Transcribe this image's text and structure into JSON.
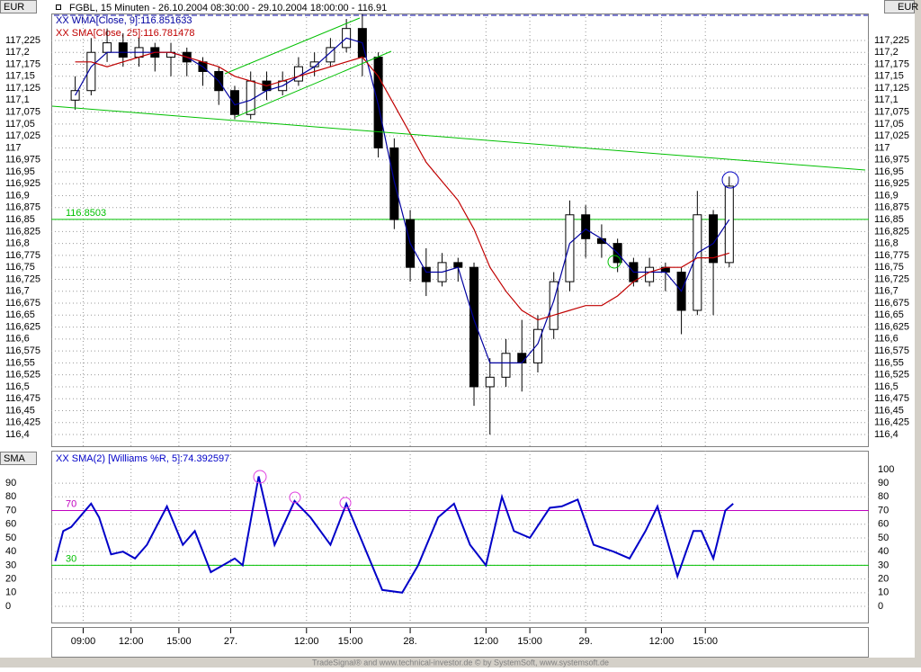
{
  "chart_data": [
    {
      "type": "candlestick",
      "title": "FGBL, 15 Minuten - 26.10.2004 08:30:00 - 29.10.2004 18:00:00 - 116.91",
      "unit": "EUR",
      "x": [
        0,
        4,
        8,
        12,
        16,
        20,
        24,
        28,
        32,
        36,
        40,
        44,
        48,
        52,
        56,
        60,
        64,
        68,
        72,
        76,
        80,
        84,
        88,
        92,
        96,
        100,
        104,
        108,
        112,
        116,
        120,
        124,
        128,
        132,
        136,
        140,
        144,
        148,
        152,
        156,
        160,
        164
      ],
      "open": [
        117.1,
        117.12,
        117.2,
        117.22,
        117.19,
        117.21,
        117.19,
        117.2,
        117.18,
        117.16,
        117.12,
        117.07,
        117.14,
        117.12,
        117.14,
        117.17,
        117.18,
        117.21,
        117.25,
        117.19,
        117.0,
        116.85,
        116.75,
        116.72,
        116.76,
        116.75,
        116.5,
        116.52,
        116.57,
        116.55,
        116.62,
        116.72,
        116.86,
        116.81,
        116.8,
        116.76,
        116.72,
        116.75,
        116.74,
        116.66,
        116.86,
        116.76
      ],
      "high": [
        117.15,
        117.23,
        117.25,
        117.24,
        117.23,
        117.22,
        117.22,
        117.21,
        117.19,
        117.17,
        117.13,
        117.16,
        117.16,
        117.16,
        117.19,
        117.2,
        117.23,
        117.27,
        117.28,
        117.2,
        117.02,
        116.87,
        116.79,
        116.78,
        116.77,
        116.76,
        116.56,
        116.6,
        116.64,
        116.65,
        116.74,
        116.89,
        116.88,
        116.84,
        116.81,
        116.77,
        116.77,
        116.76,
        116.75,
        116.91,
        116.87,
        116.94
      ],
      "low": [
        117.08,
        117.11,
        117.18,
        117.17,
        117.17,
        117.16,
        117.15,
        117.15,
        117.13,
        117.09,
        117.06,
        117.06,
        117.1,
        117.11,
        117.13,
        117.15,
        117.17,
        117.2,
        117.15,
        116.98,
        116.83,
        116.72,
        116.69,
        116.71,
        116.72,
        116.46,
        116.4,
        116.5,
        116.49,
        116.53,
        116.6,
        116.7,
        116.77,
        116.77,
        116.74,
        116.71,
        116.71,
        116.7,
        116.61,
        116.65,
        116.65,
        116.75
      ],
      "close": [
        117.12,
        117.2,
        117.22,
        117.19,
        117.21,
        117.19,
        117.2,
        117.18,
        117.16,
        117.12,
        117.07,
        117.14,
        117.12,
        117.14,
        117.17,
        117.18,
        117.21,
        117.25,
        117.19,
        117.0,
        116.85,
        116.75,
        116.72,
        116.76,
        116.75,
        116.5,
        116.52,
        116.57,
        116.55,
        116.62,
        116.72,
        116.86,
        116.81,
        116.8,
        116.76,
        116.72,
        116.75,
        116.74,
        116.66,
        116.86,
        116.76,
        116.92
      ],
      "series": [
        {
          "name": "XX WMA[Close, 9]:116.851633",
          "color": "#0000a0",
          "values": [
            117.11,
            117.17,
            117.2,
            117.2,
            117.2,
            117.2,
            117.2,
            117.19,
            117.17,
            117.14,
            117.09,
            117.1,
            117.12,
            117.13,
            117.15,
            117.17,
            117.2,
            117.23,
            117.22,
            117.09,
            116.93,
            116.8,
            116.74,
            116.74,
            116.75,
            116.64,
            116.55,
            116.55,
            116.55,
            116.59,
            116.68,
            116.8,
            116.83,
            116.81,
            116.78,
            116.74,
            116.74,
            116.74,
            116.7,
            116.78,
            116.8,
            116.85
          ]
        },
        {
          "name": "XX SMA[Close, 25]:116.781478",
          "color": "#c00000",
          "values": [
            117.18,
            117.18,
            117.17,
            117.18,
            117.19,
            117.2,
            117.2,
            117.19,
            117.18,
            117.17,
            117.15,
            117.14,
            117.13,
            117.14,
            117.15,
            117.16,
            117.17,
            117.18,
            117.19,
            117.15,
            117.09,
            117.03,
            116.97,
            116.93,
            116.89,
            116.83,
            116.75,
            116.7,
            116.66,
            116.64,
            116.65,
            116.66,
            116.67,
            116.67,
            116.69,
            116.72,
            116.74,
            116.75,
            116.75,
            116.77,
            116.77,
            116.78
          ]
        }
      ],
      "hlines": [
        {
          "value": 116.8503,
          "color": "#00c000"
        }
      ],
      "ylim": [
        116.3756,
        117.2814
      ],
      "yticks": [
        {
          "value": 117.225,
          "label": "117,225"
        },
        {
          "value": 117.2,
          "label": "117,2"
        },
        {
          "value": 117.175,
          "label": "117,175"
        },
        {
          "value": 117.15,
          "label": "117,15"
        },
        {
          "value": 117.125,
          "label": "117,125"
        },
        {
          "value": 117.1,
          "label": "117,1"
        },
        {
          "value": 117.075,
          "label": "117,075"
        },
        {
          "value": 117.05,
          "label": "117,05"
        },
        {
          "value": 117.025,
          "label": "117,025"
        },
        117,
        {
          "value": 116.975,
          "label": "116,975"
        },
        {
          "value": 116.95,
          "label": "116,95"
        },
        {
          "value": 116.925,
          "label": "116,925"
        },
        {
          "value": 116.9,
          "label": "116,9"
        },
        {
          "value": 116.875,
          "label": "116,875"
        },
        {
          "value": 116.85,
          "label": "116,85"
        },
        {
          "value": 116.825,
          "label": "116,825"
        },
        {
          "value": 116.8,
          "label": "116,8"
        },
        {
          "value": 116.775,
          "label": "116,775"
        },
        {
          "value": 116.75,
          "label": "116,75"
        },
        {
          "value": 116.725,
          "label": "116,725"
        },
        {
          "value": 116.7,
          "label": "116,7"
        },
        {
          "value": 116.675,
          "label": "116,675"
        },
        {
          "value": 116.65,
          "label": "116,65"
        },
        {
          "value": 116.625,
          "label": "116,625"
        },
        {
          "value": 116.6,
          "label": "116,6"
        },
        {
          "value": 116.575,
          "label": "116,575"
        },
        {
          "value": 116.55,
          "label": "116,55"
        },
        {
          "value": 116.525,
          "label": "116,525"
        },
        {
          "value": 116.5,
          "label": "116,5"
        },
        {
          "value": 116.475,
          "label": "116,475"
        },
        {
          "value": 116.45,
          "label": "116,45"
        },
        {
          "value": 116.425,
          "label": "116,425"
        },
        {
          "value": 116.4,
          "label": "116,4"
        }
      ],
      "grid": true
    },
    {
      "type": "line",
      "panel_label": "SMA",
      "x": [
        -5,
        -3,
        -1,
        4,
        6,
        9,
        12,
        15,
        18,
        23,
        27,
        30,
        34,
        40,
        42,
        46,
        50,
        55,
        59,
        64,
        68,
        73,
        77,
        82,
        86,
        91,
        95,
        99,
        103,
        107,
        110,
        114,
        119,
        122,
        126,
        130,
        135,
        139,
        143,
        146,
        151,
        155,
        157,
        160,
        163,
        165
      ],
      "series": [
        {
          "name": "XX SMA(2) [Williams %R, 5]:74.392597",
          "color": "#0000c8",
          "values": [
            33,
            55,
            58,
            75,
            65,
            38,
            40,
            35,
            45,
            73,
            45,
            55,
            25,
            35,
            30,
            95,
            45,
            77,
            65,
            45,
            75,
            40,
            12,
            10,
            30,
            65,
            75,
            45,
            30,
            80,
            55,
            50,
            72,
            73,
            78,
            45,
            40,
            35,
            55,
            73,
            22,
            55,
            55,
            35,
            70,
            75
          ]
        }
      ],
      "hlines": [
        {
          "value": 70,
          "color": "#c000c0"
        },
        {
          "value": 30,
          "color": "#00c000"
        }
      ],
      "ylim": [
        -11.8,
        113.7
      ],
      "yticks": [
        0,
        10,
        20,
        30,
        40,
        50,
        60,
        70,
        80,
        90
      ],
      "y2lim": [
        -11.8,
        113.7
      ],
      "y2ticks": [
        0,
        10,
        20,
        30,
        40,
        50,
        60,
        70,
        80,
        90,
        100
      ],
      "xlim": [
        -6,
        199
      ],
      "xticks": [
        {
          "value": 2,
          "label": "09:00"
        },
        {
          "value": 14,
          "label": "12:00"
        },
        {
          "value": 26,
          "label": "15:00"
        },
        {
          "value": 39,
          "label": "27."
        },
        {
          "value": 58,
          "label": "12:00"
        },
        {
          "value": 69,
          "label": "15:00"
        },
        {
          "value": 84,
          "label": "28."
        },
        {
          "value": 103,
          "label": "12:00"
        },
        {
          "value": 114,
          "label": "15:00"
        },
        {
          "value": 128,
          "label": "29."
        },
        {
          "value": 147,
          "label": "12:00"
        },
        {
          "value": 158,
          "label": "15:00"
        }
      ],
      "grid": true
    }
  ],
  "footer": "TradeSignal® and www.technical-investor.de © by SystemSoft, www.systemsoft.de"
}
